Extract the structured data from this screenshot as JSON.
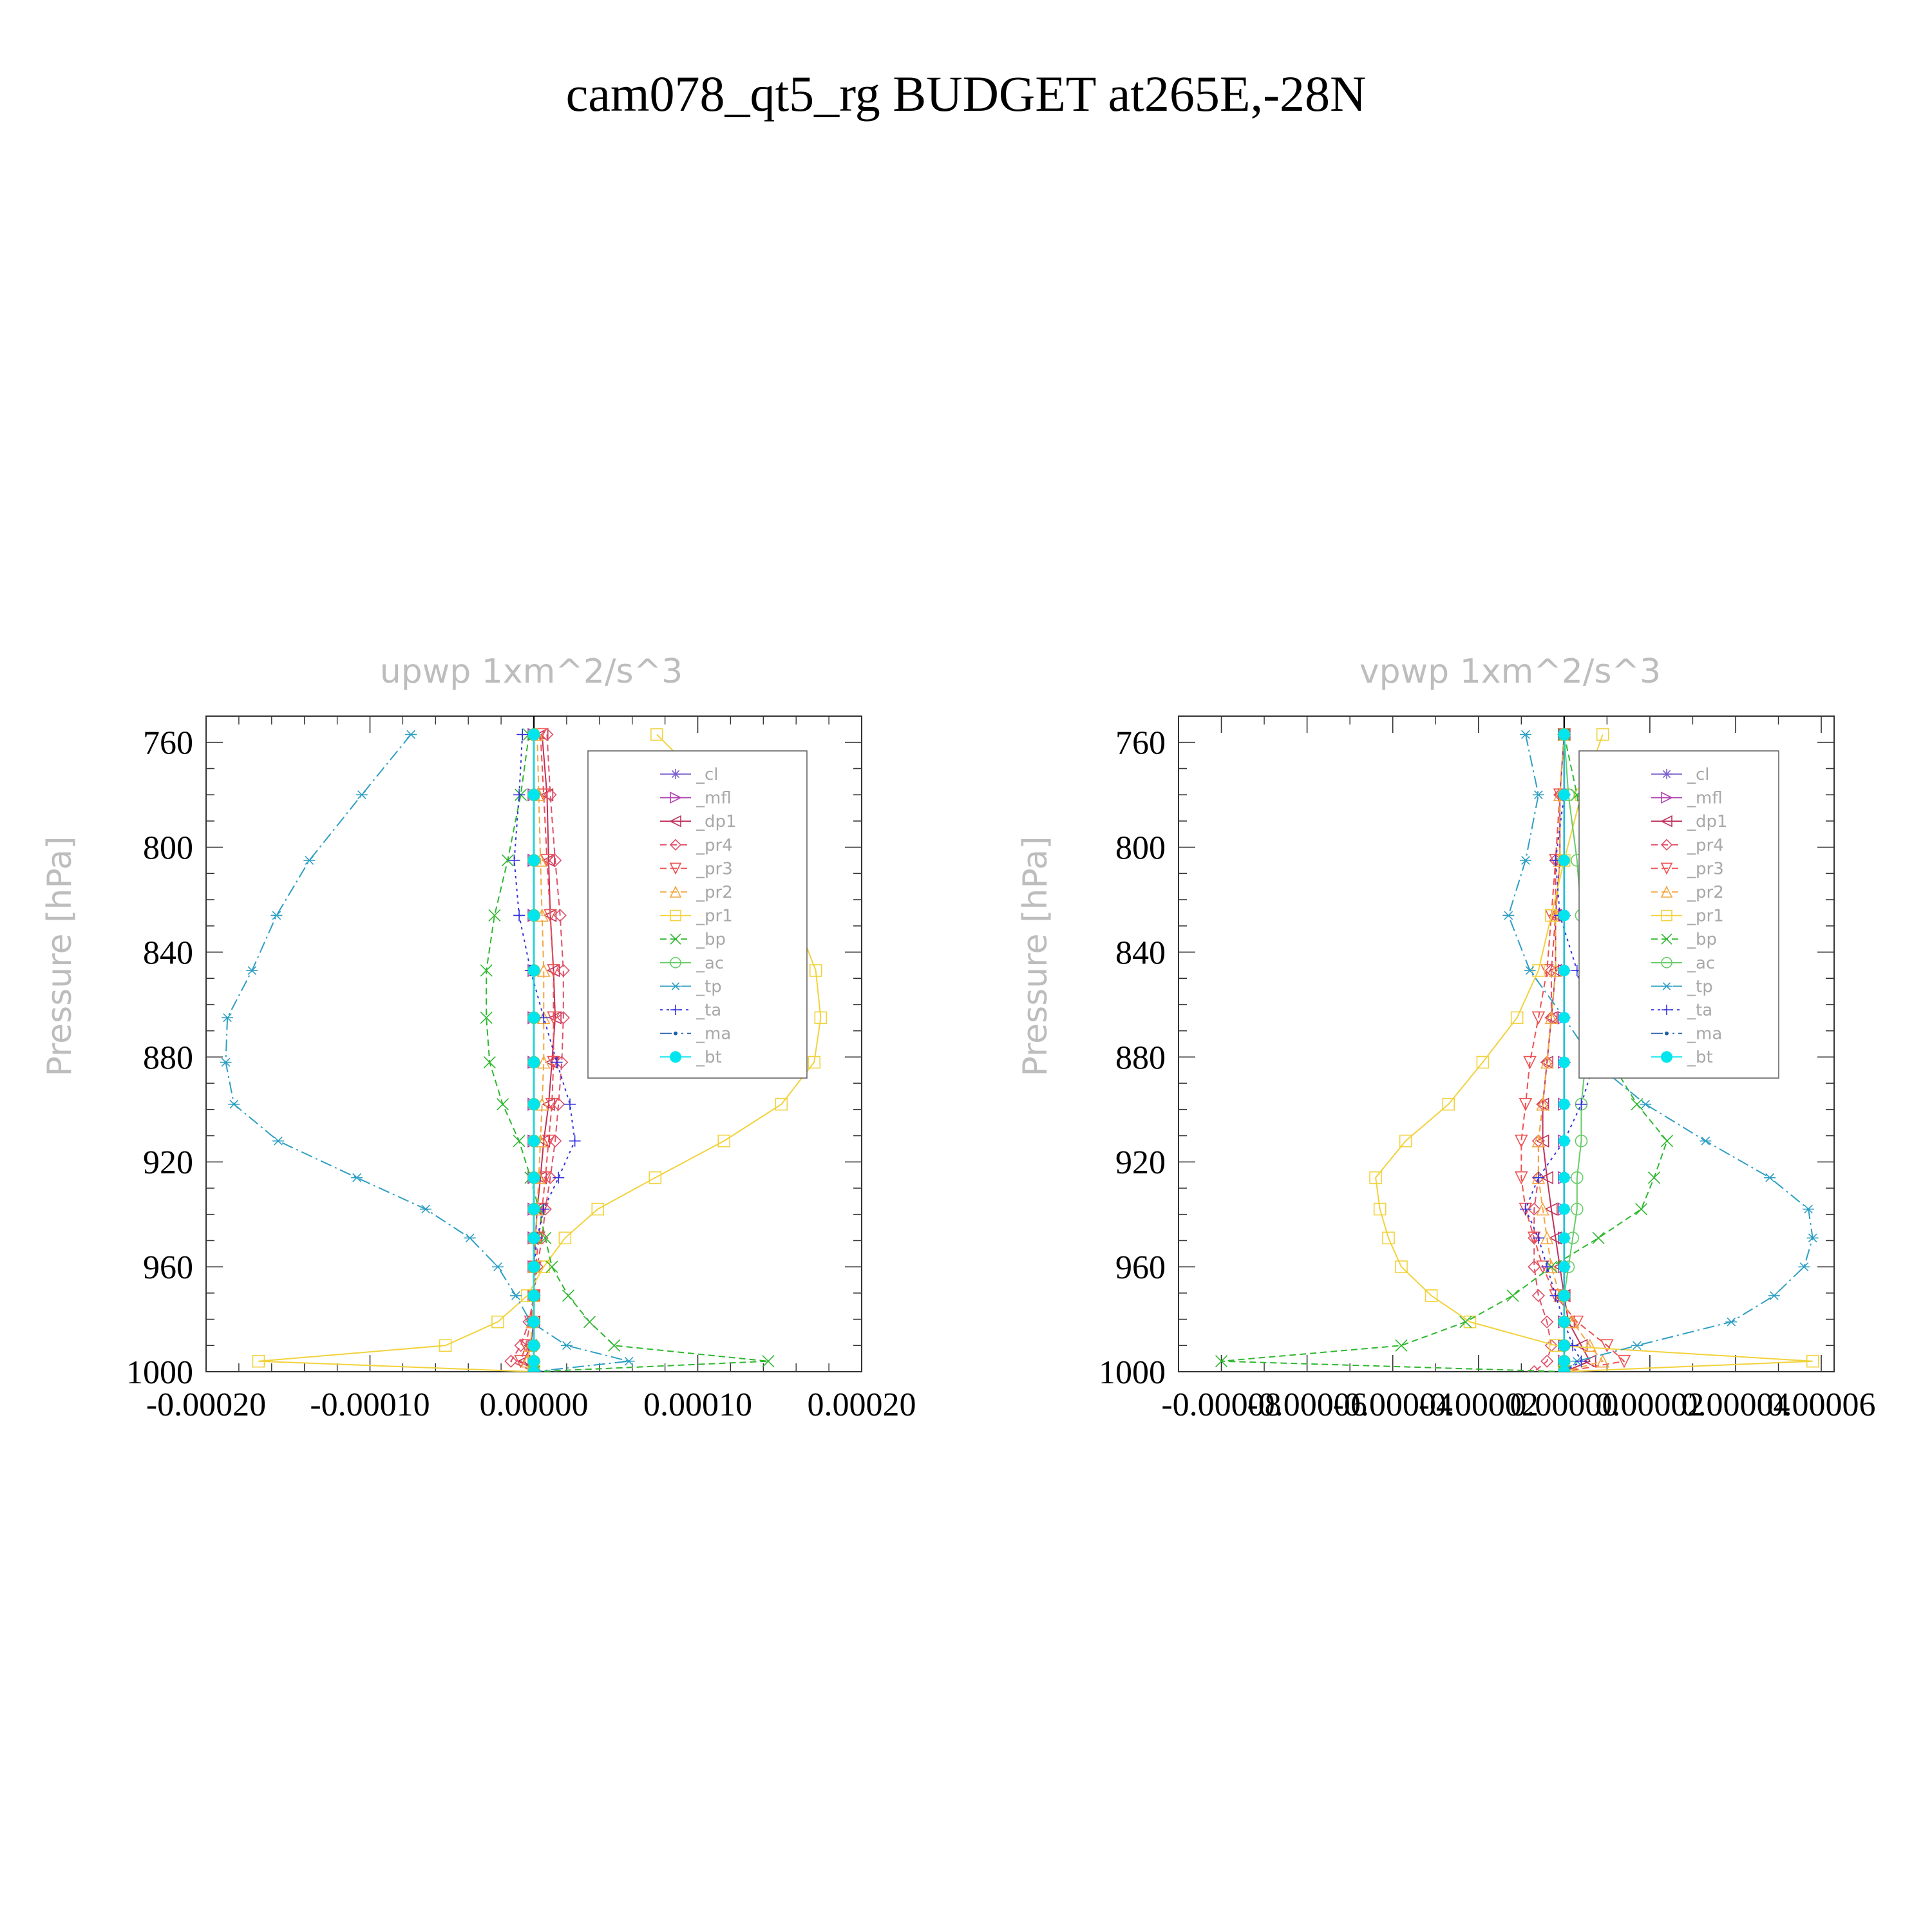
{
  "figure": {
    "title": "cam078_qt5_rg  BUDGET at265E,-28N"
  },
  "series_styles": [
    {
      "name": "_cl",
      "color": "#7b5fd1",
      "marker": "star",
      "dash": ""
    },
    {
      "name": "_mfl",
      "color": "#b041b0",
      "marker": "tri-right",
      "dash": ""
    },
    {
      "name": "_dp1",
      "color": "#c0305a",
      "marker": "tri-left",
      "dash": ""
    },
    {
      "name": "_pr4",
      "color": "#e0506a",
      "marker": "diamond",
      "dash": "10,6"
    },
    {
      "name": "_pr3",
      "color": "#ef5050",
      "marker": "tri-down",
      "dash": "10,6"
    },
    {
      "name": "_pr2",
      "color": "#f4a640",
      "marker": "tri-up",
      "dash": "10,6"
    },
    {
      "name": "_pr1",
      "color": "#f2d23c",
      "marker": "square",
      "dash": ""
    },
    {
      "name": "_bp",
      "color": "#2eb82e",
      "marker": "x",
      "dash": "10,6"
    },
    {
      "name": "_ac",
      "color": "#66cc66",
      "marker": "circle",
      "dash": ""
    },
    {
      "name": "_tp",
      "color": "#2e9fc4",
      "marker": "asterisk",
      "dash": "18,6,3,6"
    },
    {
      "name": "_ta",
      "color": "#3333dd",
      "marker": "plus",
      "dash": "4,6"
    },
    {
      "name": "_ma",
      "color": "#1f5fa8",
      "marker": "dot",
      "dash": "18,6,3,6,3,6"
    },
    {
      "name": "_bt",
      "color": "#00e5ee",
      "marker": "bigdot",
      "dash": ""
    }
  ],
  "chart_data": [
    {
      "type": "line",
      "title": "upwp   1xm^2/s^3",
      "ylabel": "Pressure [hPa]",
      "xlabel": "",
      "xlim": [
        -0.0002,
        0.0002
      ],
      "ylim": [
        1000,
        750
      ],
      "xticks": [
        -0.0002,
        -0.0001,
        0.0,
        0.0001,
        0.0002
      ],
      "xtick_labels": [
        "-0.00020",
        "-0.00010",
        "0.00000",
        "0.00010",
        "0.00020"
      ],
      "yticks": [
        760,
        800,
        840,
        880,
        920,
        960,
        1000
      ],
      "ytick_labels": [
        "760",
        "800",
        "840",
        "880",
        "920",
        "960",
        "1000"
      ],
      "legend_position": "upper-right",
      "y": [
        757,
        780,
        805,
        826,
        847,
        865,
        882,
        898,
        912,
        926,
        938,
        949,
        960,
        971,
        981,
        990,
        996,
        1000
      ],
      "series": [
        {
          "name": "_cl",
          "x": [
            0,
            0,
            0,
            0,
            0,
            0,
            0,
            0,
            0,
            0,
            0,
            0,
            0,
            0,
            0,
            0,
            0,
            0
          ]
        },
        {
          "name": "_mfl",
          "x": [
            0,
            0,
            0,
            0,
            0,
            0,
            0,
            0,
            0,
            0,
            0,
            0,
            0,
            0,
            0,
            0,
            0,
            0
          ]
        },
        {
          "name": "_dp1",
          "x": [
            5e-06,
            8e-06,
            9e-06,
            1e-05,
            1.2e-05,
            1.3e-05,
            1.1e-05,
            9e-06,
            6e-06,
            4e-06,
            2e-06,
            1e-06,
            0,
            0,
            0,
            -2e-06,
            -6e-06,
            0
          ]
        },
        {
          "name": "_pr4",
          "x": [
            8e-06,
            1e-05,
            1.3e-05,
            1.6e-05,
            1.8e-05,
            1.8e-05,
            1.7e-05,
            1.5e-05,
            1.3e-05,
            1e-05,
            7e-06,
            5e-06,
            2e-06,
            0,
            -3e-06,
            -8e-06,
            -1.4e-05,
            0
          ]
        },
        {
          "name": "_pr3",
          "x": [
            4e-06,
            6e-06,
            8e-06,
            1e-05,
            1.2e-05,
            1.2e-05,
            1.2e-05,
            1.1e-05,
            9e-06,
            7e-06,
            5e-06,
            3e-06,
            1e-06,
            0,
            -2e-06,
            -5e-06,
            -8e-06,
            0
          ]
        },
        {
          "name": "_pr2",
          "x": [
            2e-06,
            3e-06,
            4e-06,
            5e-06,
            6e-06,
            6e-06,
            6e-06,
            5e-06,
            4e-06,
            3e-06,
            2e-06,
            1e-06,
            0,
            0,
            -1e-06,
            -2e-06,
            -4e-06,
            0
          ]
        },
        {
          "name": "_pr1",
          "x": [
            7.5e-05,
            0.000112,
            0.000138,
            0.000159,
            0.000172,
            0.000175,
            0.000171,
            0.000151,
            0.000116,
            7.4e-05,
            3.9e-05,
            1.9e-05,
            6e-06,
            -4e-06,
            -2.2e-05,
            -5.4e-05,
            -0.000168,
            0
          ]
        },
        {
          "name": "_bp",
          "x": [
            -3e-06,
            -8e-06,
            -1.6e-05,
            -2.4e-05,
            -2.9e-05,
            -2.9e-05,
            -2.7e-05,
            -1.9e-05,
            -9e-06,
            -2e-06,
            3e-06,
            7e-06,
            1.1e-05,
            2.1e-05,
            3.4e-05,
            4.9e-05,
            0.000143,
            0
          ]
        },
        {
          "name": "_ac",
          "x": [
            0,
            0,
            0,
            0,
            0,
            0,
            0,
            0,
            0,
            0,
            0,
            0,
            0,
            0,
            0,
            0,
            0,
            0
          ]
        },
        {
          "name": "_tp",
          "x": [
            -7.5e-05,
            -0.000105,
            -0.000137,
            -0.000157,
            -0.000172,
            -0.000187,
            -0.000188,
            -0.000183,
            -0.000156,
            -0.000108,
            -6.6e-05,
            -3.9e-05,
            -2.2e-05,
            -1.1e-05,
            -2e-06,
            2e-05,
            5.8e-05,
            0
          ]
        },
        {
          "name": "_ta",
          "x": [
            -7e-06,
            -9e-06,
            -1.2e-05,
            -9e-06,
            -2e-06,
            6e-06,
            1.4e-05,
            2.2e-05,
            2.5e-05,
            1.5e-05,
            6e-06,
            2e-06,
            0,
            0,
            0,
            0,
            0,
            0
          ]
        },
        {
          "name": "_ma",
          "x": [
            0,
            0,
            0,
            0,
            0,
            0,
            0,
            0,
            0,
            0,
            0,
            0,
            0,
            0,
            0,
            0,
            0,
            0
          ]
        },
        {
          "name": "_bt",
          "x": [
            0,
            0,
            0,
            0,
            0,
            0,
            0,
            0,
            0,
            0,
            0,
            0,
            0,
            0,
            0,
            0,
            0,
            0
          ]
        }
      ]
    },
    {
      "type": "line",
      "title": "vpwp   1xm^2/s^3",
      "ylabel": "Pressure [hPa]",
      "xlabel": "",
      "xlim": [
        -9e-05,
        6.3e-05
      ],
      "ylim": [
        1000,
        750
      ],
      "xticks": [
        -8e-05,
        -6e-05,
        -4e-05,
        -2e-05,
        0.0,
        2e-05,
        4e-05,
        6e-05
      ],
      "xtick_labels": [
        "-0.00008",
        "-0.00006",
        "-0.00004",
        "-0.00002",
        "0.00000",
        "0.00002",
        "0.00004",
        "0.00006"
      ],
      "yticks": [
        760,
        800,
        840,
        880,
        920,
        960,
        1000
      ],
      "ytick_labels": [
        "760",
        "800",
        "840",
        "880",
        "920",
        "960",
        "1000"
      ],
      "legend_position": "upper-right",
      "y": [
        757,
        780,
        805,
        826,
        847,
        865,
        882,
        898,
        912,
        926,
        938,
        949,
        960,
        971,
        981,
        990,
        996,
        1000
      ],
      "series": [
        {
          "name": "_cl",
          "x": [
            0,
            0,
            0,
            0,
            0,
            0,
            0,
            0,
            0,
            0,
            0,
            0,
            0,
            0,
            0,
            0,
            0,
            0
          ]
        },
        {
          "name": "_mfl",
          "x": [
            0,
            0,
            0,
            0,
            0,
            0,
            0,
            0,
            0,
            0,
            0,
            0,
            0,
            0,
            0,
            0,
            0,
            0
          ]
        },
        {
          "name": "_dp1",
          "x": [
            0,
            -1e-06,
            -1e-06,
            -2e-06,
            -2e-06,
            -3e-06,
            -4e-06,
            -5e-06,
            -5e-06,
            -4e-06,
            -3e-06,
            -2e-06,
            -1e-06,
            0,
            1e-06,
            4e-06,
            6e-06,
            0
          ]
        },
        {
          "name": "_pr4",
          "x": [
            0,
            -1e-06,
            -2e-06,
            -2e-06,
            -3e-06,
            -3e-06,
            -4e-06,
            -5e-06,
            -6e-06,
            -6e-06,
            -7e-06,
            -7e-06,
            -7e-06,
            -6e-06,
            -4e-06,
            -3e-06,
            -4e-06,
            -7e-06
          ]
        },
        {
          "name": "_pr3",
          "x": [
            0,
            -1e-06,
            -2e-06,
            -3e-06,
            -4e-06,
            -6e-06,
            -8e-06,
            -9e-06,
            -1e-05,
            -1e-05,
            -9e-06,
            -7e-06,
            -5e-06,
            -2e-06,
            3e-06,
            1e-05,
            1.4e-05,
            0
          ]
        },
        {
          "name": "_pr2",
          "x": [
            0,
            -1e-06,
            -1e-06,
            -2e-06,
            -2e-06,
            -3e-06,
            -4e-06,
            -5e-06,
            -6e-06,
            -6e-06,
            -5e-06,
            -4e-06,
            -3e-06,
            -1e-06,
            2e-06,
            6e-06,
            9e-06,
            0
          ]
        },
        {
          "name": "_pr1",
          "x": [
            9e-06,
            4e-06,
            0,
            -3e-06,
            -6e-06,
            -1.1e-05,
            -1.9e-05,
            -2.7e-05,
            -3.7e-05,
            -4.4e-05,
            -4.3e-05,
            -4.1e-05,
            -3.8e-05,
            -3.1e-05,
            -2.2e-05,
            -2e-06,
            5.8e-05,
            0
          ]
        },
        {
          "name": "_bp",
          "x": [
            0,
            3e-06,
            5e-06,
            6e-06,
            6e-06,
            7e-06,
            1.1e-05,
            1.7e-05,
            2.4e-05,
            2.1e-05,
            1.8e-05,
            8e-06,
            -3e-06,
            -1.2e-05,
            -2.3e-05,
            -3.8e-05,
            -8e-05,
            0
          ]
        },
        {
          "name": "_ac",
          "x": [
            0,
            1e-06,
            3e-06,
            4e-06,
            5e-06,
            5e-06,
            5e-06,
            4e-06,
            4e-06,
            3e-06,
            3e-06,
            2e-06,
            1e-06,
            0,
            0,
            0,
            0,
            0
          ]
        },
        {
          "name": "_tp",
          "x": [
            -9e-06,
            -6e-06,
            -9e-06,
            -1.3e-05,
            -8e-06,
            0,
            7e-06,
            1.9e-05,
            3.3e-05,
            4.8e-05,
            5.7e-05,
            5.8e-05,
            5.6e-05,
            4.9e-05,
            3.9e-05,
            1.7e-05,
            3e-06,
            0
          ]
        },
        {
          "name": "_ta",
          "x": [
            0,
            0,
            -2e-06,
            -1e-06,
            3e-06,
            5e-06,
            7e-06,
            4e-06,
            0,
            -6e-06,
            -9e-06,
            -6e-06,
            -4e-06,
            -2e-06,
            0,
            2e-06,
            4e-06,
            0
          ]
        },
        {
          "name": "_ma",
          "x": [
            0,
            0,
            0,
            0,
            0,
            0,
            0,
            0,
            0,
            0,
            0,
            0,
            0,
            0,
            0,
            0,
            0,
            0
          ]
        },
        {
          "name": "_bt",
          "x": [
            0,
            0,
            0,
            0,
            0,
            0,
            0,
            0,
            0,
            0,
            0,
            0,
            0,
            0,
            0,
            0,
            0,
            0
          ]
        }
      ]
    }
  ]
}
